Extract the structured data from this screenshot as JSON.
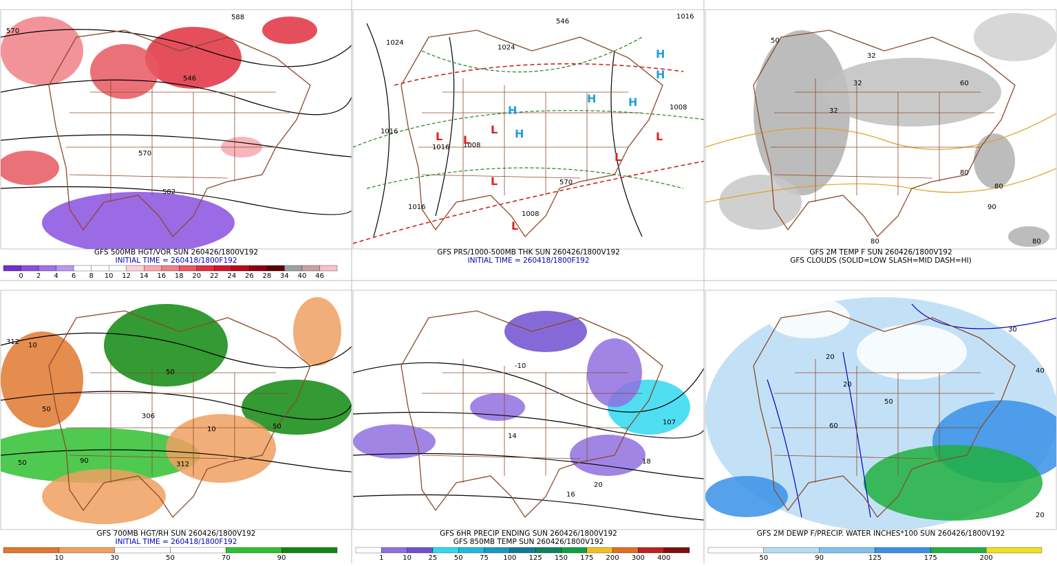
{
  "panels": [
    {
      "captions": [
        {
          "text": "GFS 500MB HGT/VOR SUN 260426/1800V192",
          "color": "#000000"
        },
        {
          "text": "INITIAL TIME = 260418/1800F192",
          "color": "#0000c0"
        }
      ],
      "colorbar": {
        "colors": [
          "#7030d0",
          "#8a50e0",
          "#a070e8",
          "#b898f0",
          "#ffffff",
          "#ffffff",
          "#ffffff",
          "#ffd0d8",
          "#f8a8b0",
          "#f08088",
          "#e85860",
          "#e03040",
          "#d01828",
          "#b80818",
          "#900010",
          "#600000",
          "#a0a0a0",
          "#c8a0a8",
          "#f8c0c8"
        ],
        "labels": [
          "0",
          "2",
          "4",
          "6",
          "8",
          "10",
          "12",
          "14",
          "16",
          "18",
          "20",
          "22",
          "24",
          "26",
          "28",
          "34",
          "40",
          "46"
        ]
      },
      "map_labels": [
        "570",
        "588",
        "546",
        "570",
        "582"
      ]
    },
    {
      "captions": [
        {
          "text": "GFS PRS/1000-500MB THK SUN 260426/1800V192",
          "color": "#000000"
        },
        {
          "text": "INITIAL TIME = 260418/1800F192",
          "color": "#0000c0"
        }
      ],
      "map_labels": [
        "1024",
        "1024",
        "1016",
        "1016",
        "1008",
        "1008",
        "1016",
        "1008",
        "1016",
        "546",
        "570",
        "H",
        "H",
        "H",
        "H",
        "H",
        "H",
        "L",
        "L",
        "L",
        "L",
        "L",
        "L",
        "L"
      ]
    },
    {
      "captions": [
        {
          "text": "GFS 2M TEMP F SUN 260426/1800V192",
          "color": "#000000"
        },
        {
          "text": "GFS CLOUDS (SOLID=LOW SLASH=MID DASH=HI)",
          "color": "#000000"
        }
      ],
      "map_labels": [
        "50",
        "32",
        "32",
        "32",
        "60",
        "80",
        "80",
        "90",
        "80",
        "80"
      ]
    },
    {
      "captions": [
        {
          "text": "GFS 700MB HGT/RH SUN 260426/1800V192",
          "color": "#000000"
        },
        {
          "text": "INITIAL TIME = 260418/1800F192",
          "color": "#0000c0"
        }
      ],
      "colorbar": {
        "colors": [
          "#e07830",
          "#f0a060",
          "#ffffff",
          "#ffffff",
          "#30c030",
          "#108810"
        ],
        "labels": [
          "10",
          "30",
          "50",
          "70",
          "90"
        ]
      },
      "map_labels": [
        "312",
        "10",
        "50",
        "50",
        "306",
        "312",
        "10",
        "50",
        "50",
        "90"
      ]
    },
    {
      "captions": [
        {
          "text": "GFS 6HR PRECIP ENDING SUN 260426/1800V192",
          "color": "#000000"
        },
        {
          "text": "GFS 850MB TEMP SUN 260426/1800V192",
          "color": "#000000"
        }
      ],
      "colorbar": {
        "colors": [
          "#ffffff",
          "#9070e0",
          "#7050d0",
          "#30d8f0",
          "#20b8e0",
          "#1898c8",
          "#107898",
          "#108060",
          "#10a040",
          "#f0c020",
          "#e07020",
          "#c02020",
          "#801010"
        ],
        "labels": [
          "1",
          "10",
          "25",
          "50",
          "75",
          "100",
          "125",
          "150",
          "175",
          "200",
          "300",
          "400"
        ]
      },
      "map_labels": [
        "-10",
        "14",
        "107",
        "18",
        "16",
        "20"
      ]
    },
    {
      "captions": [
        {
          "text": "GFS 2M DEWP F/PRECIP. WATER INCHES*100 SUN 260426/1800V192",
          "color": "#000000"
        }
      ],
      "colorbar": {
        "colors": [
          "#ffffff",
          "#b8dcf4",
          "#80c0f0",
          "#3890e8",
          "#20b040",
          "#f0e020"
        ],
        "labels": [
          "50",
          "90",
          "125",
          "175",
          "200"
        ]
      },
      "map_labels": [
        "20",
        "20",
        "30",
        "40",
        "50",
        "60",
        "20"
      ]
    }
  ]
}
